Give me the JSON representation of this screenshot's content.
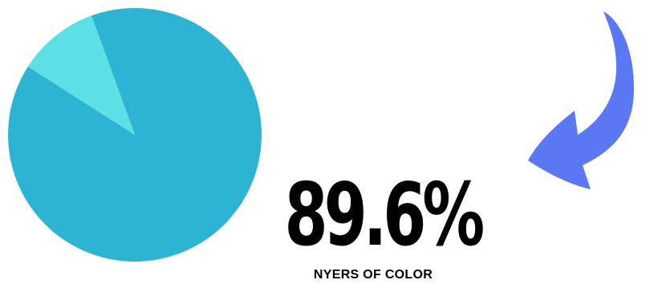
{
  "chart_data": {
    "type": "pie",
    "title": "",
    "slices": [
      {
        "label": "NYERS OF COLOR",
        "value": 89.6,
        "color": "#2DB4D3"
      },
      {
        "label": "",
        "value": 10.4,
        "color": "#5CE0E5"
      }
    ],
    "start_angle_deg": -20,
    "legend": "none"
  },
  "stat": {
    "value": "89.6%",
    "label": "NYERS OF COLOR"
  },
  "colors": {
    "primary_slice": "#2DB4D3",
    "secondary_slice": "#5CE0E5",
    "arrow": "#5B78F4",
    "text": "#000000"
  },
  "icons": {
    "arrow": "curved-arrow-icon"
  }
}
